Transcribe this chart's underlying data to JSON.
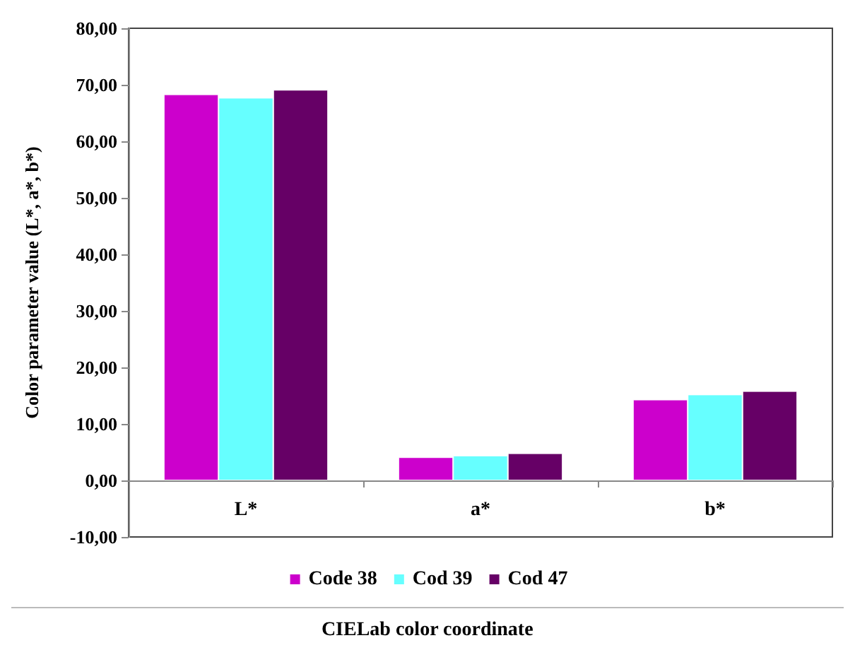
{
  "chart_data": {
    "type": "bar",
    "xlabel": "CIELab color coordinate",
    "ylabel": "Color parameter value (L*, a*, b*)",
    "categories": [
      "L*",
      "a*",
      "b*"
    ],
    "series": [
      {
        "name": "Code 38",
        "color": "#cc00cc",
        "values": [
          68.3,
          4.1,
          14.3
        ]
      },
      {
        "name": "Cod 39",
        "color": "#66ffff",
        "values": [
          67.7,
          4.4,
          15.2
        ]
      },
      {
        "name": "Cod 47",
        "color": "#660066",
        "values": [
          69.1,
          4.8,
          15.8
        ]
      }
    ],
    "ylim": [
      -10,
      80
    ],
    "yticks": [
      {
        "value": -10,
        "label": "-10,00"
      },
      {
        "value": 0,
        "label": "0,00"
      },
      {
        "value": 10,
        "label": "10,00"
      },
      {
        "value": 20,
        "label": "20,00"
      },
      {
        "value": 30,
        "label": "30,00"
      },
      {
        "value": 40,
        "label": "40,00"
      },
      {
        "value": 50,
        "label": "50,00"
      },
      {
        "value": 60,
        "label": "60,00"
      },
      {
        "value": 70,
        "label": "70,00"
      },
      {
        "value": 80,
        "label": "80,00"
      }
    ],
    "grid": false,
    "legend": "bottom"
  }
}
